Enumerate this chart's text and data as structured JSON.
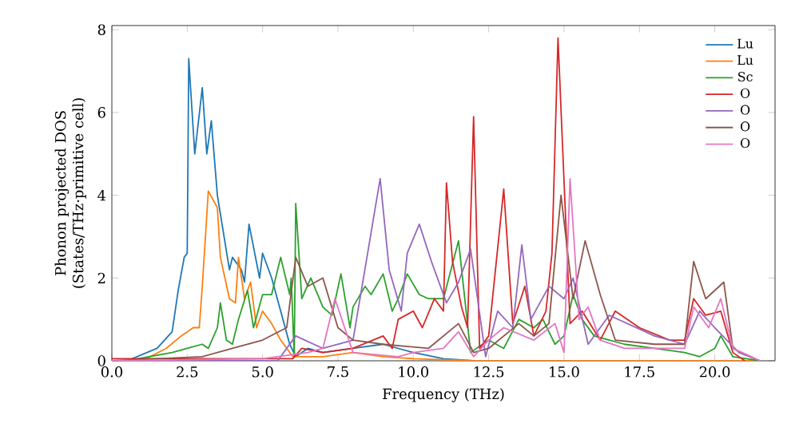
{
  "chart_data": {
    "type": "line",
    "xlabel": "Frequency (THz)",
    "ylabel": "Phonon projected DOS\n(States/THz·primitive cell)",
    "xlim": [
      0,
      22
    ],
    "ylim": [
      0,
      8.1
    ],
    "xticks": [
      {
        "value": 0,
        "label": "0.0"
      },
      {
        "value": 2.5,
        "label": "2.5"
      },
      {
        "value": 5,
        "label": "5.0"
      },
      {
        "value": 7.5,
        "label": "7.5"
      },
      {
        "value": 10,
        "label": "10.0"
      },
      {
        "value": 12.5,
        "label": "12.5"
      },
      {
        "value": 15,
        "label": "15.0"
      },
      {
        "value": 17.5,
        "label": "17.5"
      },
      {
        "value": 20,
        "label": "20.0"
      }
    ],
    "yticks": [
      0,
      2,
      4,
      6,
      8
    ],
    "legend": "top right",
    "grid": false,
    "marker": "none",
    "line_style": "solid",
    "series": [
      {
        "name": "Lu",
        "color": "#1f77b4",
        "x": [
          0,
          0.5,
          1.5,
          2,
          2.2,
          2.4,
          2.5,
          2.55,
          2.75,
          3.0,
          3.15,
          3.3,
          3.5,
          3.9,
          4.0,
          4.3,
          4.4,
          4.55,
          4.9,
          5.0,
          5.3,
          5.6,
          5.9,
          6.1,
          6.5,
          7,
          8,
          9,
          10,
          11,
          12,
          21.5
        ],
        "values": [
          0,
          0,
          0.3,
          0.7,
          1.7,
          2.5,
          2.6,
          7.3,
          5.0,
          6.6,
          5.0,
          5.8,
          4.0,
          2.2,
          2.5,
          2.2,
          1.9,
          3.3,
          2.0,
          2.6,
          2.0,
          1.2,
          0.4,
          0.1,
          0.3,
          0.2,
          0.3,
          0.4,
          0.2,
          0.05,
          0,
          0
        ]
      },
      {
        "name": "Lu",
        "color": "#ff7f0e",
        "x": [
          0,
          1,
          1.8,
          2.3,
          2.7,
          2.9,
          3.0,
          3.2,
          3.5,
          3.6,
          3.9,
          4.1,
          4.2,
          4.4,
          4.6,
          4.8,
          5.0,
          5.3,
          5.6,
          6.0,
          7,
          8,
          9,
          10,
          12,
          21.5
        ],
        "values": [
          0,
          0,
          0.3,
          0.6,
          0.8,
          0.8,
          1.8,
          4.1,
          3.7,
          2.5,
          1.5,
          1.4,
          2.5,
          1.5,
          1.9,
          0.8,
          1.2,
          0.9,
          0.5,
          0.1,
          0.1,
          0.2,
          0.1,
          0.05,
          0,
          0
        ]
      },
      {
        "name": "Sc",
        "color": "#2ca02c",
        "x": [
          0,
          0.5,
          2,
          2.5,
          3,
          3.2,
          3.5,
          3.6,
          3.8,
          4.0,
          4.2,
          4.5,
          4.7,
          5.0,
          5.3,
          5.6,
          5.9,
          5.95,
          6.05,
          6.1,
          6.3,
          6.6,
          7.0,
          7.3,
          7.6,
          7.9,
          8.0,
          8.4,
          8.6,
          9.0,
          9.3,
          9.5,
          9.8,
          10.2,
          10.5,
          11.0,
          11.5,
          11.9,
          12.5,
          13,
          13.5,
          14,
          14.3,
          14.7,
          15.0,
          15.3,
          15.6,
          16.0,
          17,
          18,
          19,
          19.5,
          20,
          20.2,
          20.6,
          21.5
        ],
        "values": [
          0,
          0,
          0.2,
          0.3,
          0.4,
          0.3,
          0.8,
          1.4,
          0.5,
          0.4,
          1.0,
          1.7,
          0.8,
          1.6,
          1.6,
          2.5,
          1.6,
          2.0,
          0.1,
          3.8,
          1.5,
          2.0,
          1.3,
          1.1,
          2.1,
          0.8,
          1.3,
          1.8,
          1.6,
          2.1,
          1.2,
          1.5,
          2.1,
          1.6,
          1.5,
          1.5,
          2.9,
          0.2,
          0.5,
          0.3,
          1.0,
          0.8,
          1.0,
          0.4,
          0.6,
          1.6,
          1.0,
          0.6,
          0.4,
          0.3,
          0.2,
          0.1,
          0.3,
          0.6,
          0.1,
          0
        ]
      },
      {
        "name": "O",
        "color": "#d62728",
        "x": [
          0,
          6,
          6.3,
          7,
          8,
          9,
          9.3,
          9.5,
          10,
          10.3,
          10.7,
          11.0,
          11.1,
          11.3,
          11.6,
          11.8,
          12.0,
          12.2,
          12.5,
          13.0,
          13.3,
          13.7,
          14.0,
          14.4,
          14.6,
          14.8,
          15.2,
          15.6,
          16.2,
          16.7,
          17.5,
          18.5,
          19,
          19.3,
          19.7,
          20.2,
          20.6,
          21
        ],
        "values": [
          0.05,
          0.05,
          0.3,
          0.2,
          0.3,
          0.6,
          0.3,
          1.0,
          1.2,
          0.8,
          1.5,
          1.2,
          4.3,
          2.4,
          1.3,
          0.8,
          5.9,
          0.3,
          0.6,
          4.15,
          0.9,
          1.8,
          0.6,
          1.2,
          2.6,
          7.8,
          0.9,
          1.2,
          0.5,
          1.2,
          0.8,
          0.5,
          0.5,
          1.5,
          1.1,
          1.2,
          0.2,
          0
        ]
      },
      {
        "name": "O",
        "color": "#9467bd",
        "x": [
          0,
          5.5,
          6.1,
          7,
          8,
          8.9,
          9.2,
          9.6,
          9.8,
          10.2,
          10.6,
          11.1,
          11.5,
          11.9,
          12.4,
          12.8,
          13.3,
          13.6,
          13.9,
          14.5,
          15.0,
          15.3,
          15.8,
          16.5,
          18,
          19,
          19.5,
          20,
          20.8,
          21.5
        ],
        "values": [
          0,
          0,
          0.6,
          0.3,
          0.5,
          4.4,
          2.2,
          1.2,
          2.6,
          3.3,
          2.4,
          1.4,
          1.9,
          2.7,
          0.1,
          1.2,
          0.8,
          2.8,
          1.0,
          1.8,
          1.5,
          2.0,
          0.4,
          1.1,
          0.6,
          0.4,
          1.2,
          0.8,
          0.2,
          0
        ]
      },
      {
        "name": "O",
        "color": "#8c564b",
        "x": [
          0,
          3,
          4,
          5,
          5.8,
          6.1,
          6.5,
          7,
          7.5,
          8,
          9,
          10.5,
          11.5,
          12,
          12.5,
          13.5,
          14,
          14.5,
          14.9,
          15.3,
          15.7,
          16.2,
          16.7,
          18,
          19,
          19.3,
          19.7,
          20.3,
          20.6,
          21.5
        ],
        "values": [
          0,
          0.1,
          0.3,
          0.5,
          0.8,
          2.5,
          1.8,
          2.0,
          0.8,
          0.5,
          0.4,
          0.3,
          0.9,
          0.2,
          0.3,
          0.9,
          0.6,
          0.9,
          4.0,
          1.5,
          2.9,
          1.6,
          0.5,
          0.4,
          0.4,
          2.4,
          1.5,
          1.9,
          0.3,
          0
        ]
      },
      {
        "name": "O",
        "color": "#e377c2",
        "x": [
          0,
          5,
          6.5,
          7,
          7.4,
          8,
          9.5,
          10,
          11,
          11.5,
          12,
          12.5,
          13,
          14,
          14.7,
          15.0,
          15.2,
          15.5,
          15.8,
          16.2,
          17,
          19,
          19.3,
          19.8,
          20.2,
          20.6,
          21.5
        ],
        "values": [
          0,
          0.05,
          0.2,
          0.3,
          1.5,
          0.2,
          0.1,
          0.2,
          0.3,
          0.7,
          0.1,
          0.5,
          0.8,
          0.5,
          0.9,
          0.2,
          4.4,
          1.0,
          1.3,
          0.5,
          0.3,
          0.3,
          1.3,
          0.8,
          1.5,
          0.3,
          0
        ]
      }
    ]
  }
}
